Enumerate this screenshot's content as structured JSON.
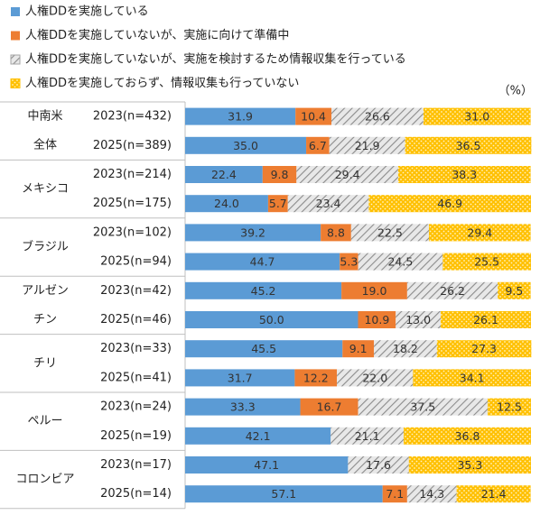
{
  "chart_data": {
    "type": "stacked_bar",
    "orientation": "horizontal",
    "unit_label": "（%）",
    "groups": [
      [
        "中南米",
        "全体"
      ],
      [
        "メキシコ"
      ],
      [
        "ブラジル"
      ],
      [
        "アルゼン",
        "チン"
      ],
      [
        "チリ"
      ],
      [
        "ペルー"
      ],
      [
        "コロンビア"
      ]
    ],
    "categories": [
      "2023(n=432)",
      "2025(n=389)",
      "2023(n=214)",
      "2025(n=175)",
      "2023(n=102)",
      "2025(n=94)",
      "2023(n=42)",
      "2025(n=46)",
      "2023(n=33)",
      "2025(n=41)",
      "2023(n=24)",
      "2025(n=19)",
      "2023(n=17)",
      "2025(n=14)"
    ],
    "xlim": [
      0,
      100
    ],
    "series": [
      {
        "name": "人権DDを実施している",
        "color": "#5b9bd5",
        "pattern": "solid",
        "values": [
          31.9,
          35.0,
          22.4,
          24.0,
          39.2,
          44.7,
          45.2,
          50.0,
          45.5,
          31.7,
          33.3,
          42.1,
          47.1,
          57.1
        ],
        "value_labels": [
          "31.9",
          "35.0",
          "22.4",
          "24.0",
          "39.2",
          "44.7",
          "45.2",
          "50.0",
          "45.5",
          "31.7",
          "33.3",
          "42.1",
          "47.1",
          "57.1"
        ]
      },
      {
        "name": "人権DDを実施していないが、実施に向けて準備中",
        "color": "#ed7d31",
        "pattern": "solid",
        "values": [
          10.4,
          6.7,
          9.8,
          5.7,
          8.8,
          5.3,
          19.0,
          10.9,
          9.1,
          12.2,
          16.7,
          null,
          null,
          7.1
        ],
        "value_labels": [
          "10.4",
          "6.7",
          "9.8",
          "5.7",
          "8.8",
          "5.3",
          "19.0",
          "10.9",
          "9.1",
          "12.2",
          "16.7",
          null,
          null,
          "7.1"
        ]
      },
      {
        "name": "人権DDを実施していないが、実施を検討するため情報収集を行っている",
        "color": "#a5a5a5",
        "pattern": "hatch",
        "values": [
          26.6,
          21.9,
          29.4,
          23.4,
          22.5,
          24.5,
          26.2,
          13.0,
          18.2,
          22.0,
          37.5,
          21.1,
          17.6,
          14.3
        ],
        "value_labels": [
          "26.6",
          "21.9",
          "29.4",
          "23.4",
          "22.5",
          "24.5",
          "26.2",
          "13.0",
          "18.2",
          "22.0",
          "37.5",
          "21.1",
          "17.6",
          "14.3"
        ]
      },
      {
        "name": "人権DDを実施しておらず、情報収集も行っていない",
        "color": "#ffc000",
        "pattern": "dots",
        "values": [
          31.0,
          36.5,
          38.3,
          46.9,
          29.4,
          25.5,
          9.5,
          26.1,
          27.3,
          34.1,
          12.5,
          36.8,
          35.3,
          21.4
        ],
        "value_labels": [
          "31.0",
          "36.5",
          "38.3",
          "46.9",
          "29.4",
          "25.5",
          "9.5",
          "26.1",
          "27.3",
          "34.1",
          "12.5",
          "36.8",
          "35.3",
          "21.4"
        ]
      }
    ]
  }
}
